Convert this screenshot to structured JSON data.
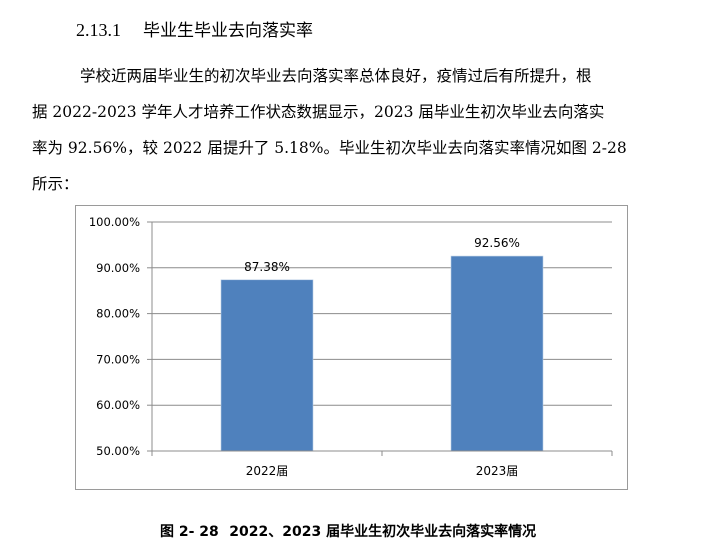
{
  "section": {
    "number": "2.13.1",
    "title": "毕业生毕业去向落实率"
  },
  "paragraph": {
    "lines": [
      "学校近两届毕业生的初次毕业去向落实率总体良好，疫情过后有所提升，根",
      "据 2022-2023 学年人才培养工作状态数据显示，2023 届毕业生初次毕业去向落实",
      "率为 92.56%，较 2022 届提升了 5.18%。毕业生初次毕业去向落实率情况如图 2-28",
      "所示："
    ]
  },
  "chart_data": {
    "type": "bar",
    "title": "",
    "categories": [
      "2022届",
      "2023届"
    ],
    "values": [
      87.38,
      92.56
    ],
    "value_labels": [
      "87.38%",
      "92.56%"
    ],
    "xlabel": "",
    "ylabel": "",
    "ylim": [
      50,
      100
    ],
    "yticks": [
      "50.00%",
      "60.00%",
      "70.00%",
      "80.00%",
      "90.00%",
      "100.00%"
    ],
    "grid": true,
    "legend": "none",
    "bar_color": "#4F81BD"
  },
  "caption": {
    "figure_label": "图 2- 28",
    "text": "2022、2023 届毕业生初次毕业去向落实率情况"
  }
}
